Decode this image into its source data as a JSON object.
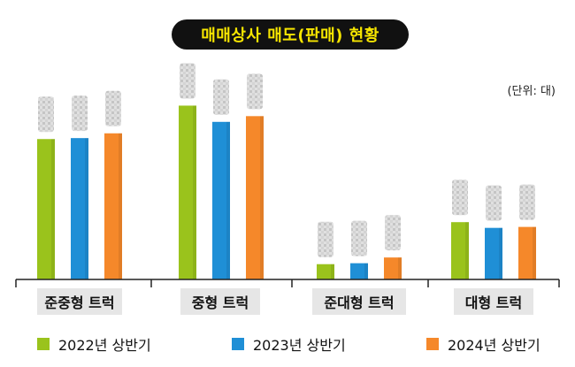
{
  "chart_data": {
    "type": "bar",
    "title": "매매상사 매도(판매) 현황",
    "unit_label": "(단위: 대)",
    "categories": [
      "준중형 트럭",
      "중형 트럭",
      "준대형 트럭",
      "대형 트럭"
    ],
    "series": [
      {
        "name": "2022년 상반기",
        "color": "#9ac31c",
        "values": [
          147,
          182,
          16,
          60
        ]
      },
      {
        "name": "2023년 상반기",
        "color": "#1f8fd6",
        "values": [
          148,
          165,
          17,
          54
        ]
      },
      {
        "name": "2024년 상반기",
        "color": "#f5882a",
        "values": [
          153,
          171,
          23,
          55
        ]
      }
    ],
    "ylim": [
      0,
      200
    ],
    "value_labels": "blurred",
    "grid": false,
    "legend_position": "bottom"
  }
}
